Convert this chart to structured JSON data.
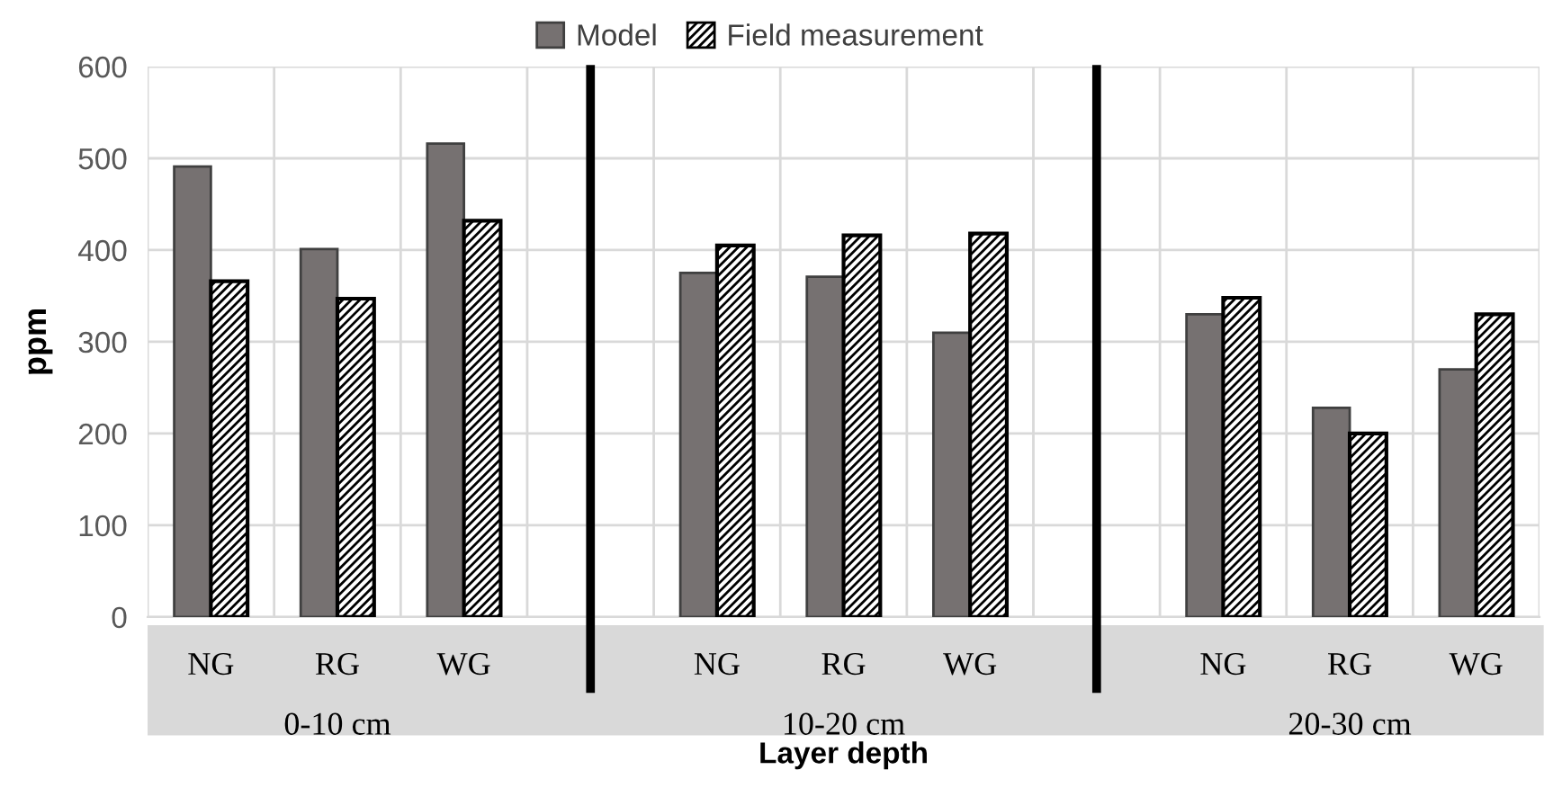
{
  "chart_data": {
    "type": "bar",
    "categories": [
      "NG",
      "RG",
      "WG",
      null,
      "NG",
      "RG",
      "WG",
      null,
      "NG",
      "RG",
      "WG"
    ],
    "series": [
      {
        "name": "Model",
        "color": "#767171",
        "values": [
          491,
          401,
          516,
          null,
          375,
          371,
          310,
          null,
          330,
          228,
          270
        ]
      },
      {
        "name": "Field measurement",
        "color": "#000000",
        "values": [
          366,
          347,
          432,
          null,
          405,
          416,
          418,
          null,
          348,
          200,
          330
        ]
      }
    ],
    "ylabel": "ppm",
    "xlabel": "Layer depth",
    "annotations": [
      "0-10 cm",
      "10-20 cm",
      "20-30 cm"
    ],
    "ylim": [
      0,
      600
    ],
    "yticks": [
      0,
      100,
      200,
      300,
      400,
      500,
      600
    ],
    "grid": true,
    "legend": "top"
  }
}
